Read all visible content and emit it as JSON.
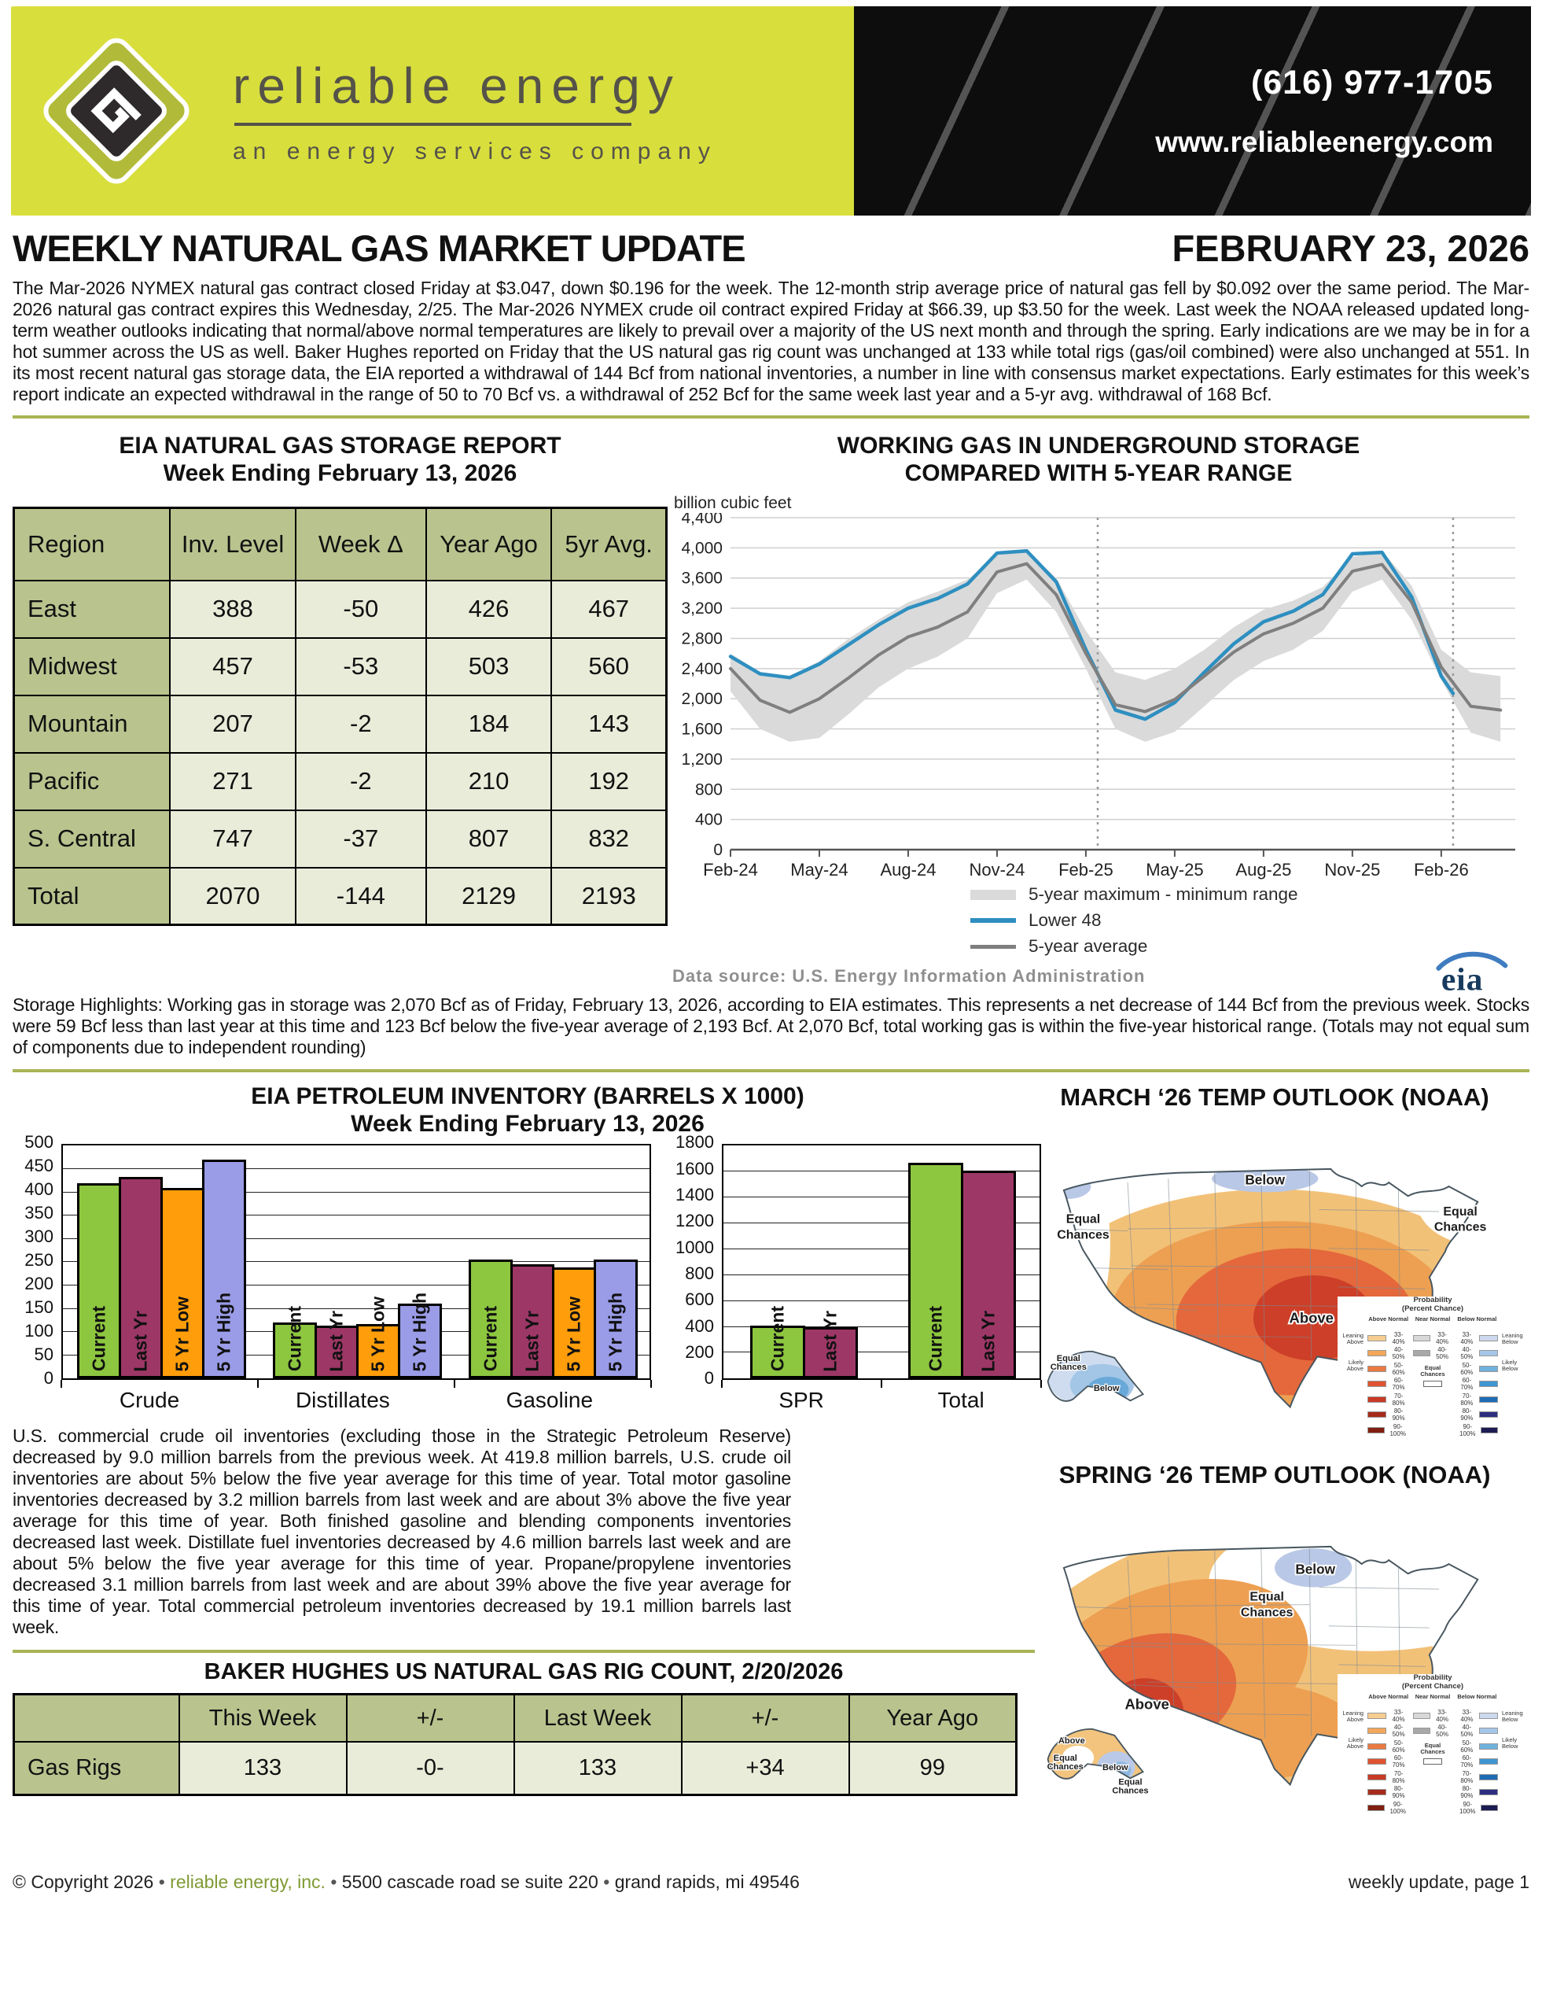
{
  "header": {
    "brand": "reliable energy",
    "tagline": "an energy services company",
    "phone": "(616) 977-1705",
    "website": "www.reliableenergy.com"
  },
  "title": {
    "main": "WEEKLY NATURAL GAS MARKET UPDATE",
    "date": "FEBRUARY 23, 2026"
  },
  "intro_text": "The Mar-2026 NYMEX natural gas contract closed Friday at $3.047, down $0.196 for the week. The 12-month strip average price of natural gas fell by $0.092 over the same period. The Mar-2026 natural gas contract expires this Wednesday, 2/25. The Mar-2026 NYMEX crude oil contract expired Friday at $66.39, up $3.50 for the week. Last week the NOAA released updated long-term weather outlooks indicating that normal/above normal temperatures are likely to prevail over a majority of the US next month and through the spring. Early indications are we may be in for a hot summer across the US as well. Baker Hughes reported on Friday that the US natural gas rig count was unchanged at 133 while total rigs (gas/oil combined) were also unchanged at 551. In its most recent natural gas storage data, the EIA reported a withdrawal of 144 Bcf from national inventories, a number in line with consensus market expectations. Early estimates for this week’s report indicate an expected withdrawal in the range of 50 to 70 Bcf vs. a withdrawal of 252 Bcf for the same week last year and a 5-yr avg. withdrawal of 168 Bcf.",
  "storage_report": {
    "title_line1": "EIA NATURAL GAS STORAGE REPORT",
    "title_line2": "Week Ending February 13, 2026",
    "columns": [
      "Region",
      "Inv. Level",
      "Week Δ",
      "Year Ago",
      "5yr Avg."
    ],
    "rows": [
      [
        "East",
        "388",
        "-50",
        "426",
        "467"
      ],
      [
        "Midwest",
        "457",
        "-53",
        "503",
        "560"
      ],
      [
        "Mountain",
        "207",
        "-2",
        "184",
        "143"
      ],
      [
        "Pacific",
        "271",
        "-2",
        "210",
        "192"
      ],
      [
        "S. Central",
        "747",
        "-37",
        "807",
        "832"
      ],
      [
        "Total",
        "2070",
        "-144",
        "2129",
        "2193"
      ]
    ]
  },
  "storage_highlights": "Storage Highlights: Working gas in storage was 2,070 Bcf as of Friday, February 13, 2026, according to EIA estimates. This represents a net decrease of 144 Bcf from the previous week. Stocks were 59 Bcf less than last year at this time and 123 Bcf below the five-year average of 2,193 Bcf. At 2,070 Bcf, total working gas is within the five-year historical range. (Totals may not equal sum of components due to independent rounding)",
  "petroleum_text": "U.S. commercial crude oil inventories (excluding those in the Strategic Petroleum Reserve) decreased by 9.0 million barrels from the previous week. At 419.8 million barrels, U.S. crude oil inventories are about 5% below the five year average for this time of year. Total motor gasoline inventories decreased by 3.2 million barrels from last week and are about 3% above the five year average for this time of year. Both finished gasoline and blending components inventories decreased last week. Distillate fuel inventories decreased by 4.6 million barrels last week and are about 5% below the five year average for this time of year. Propane/propylene inventories decreased 3.1 million barrels from last week and are about 39% above the five year average for this time of year. Total commercial petroleum inventories decreased by 19.1 million barrels last week.",
  "rig_count": {
    "title": "BAKER HUGHES US NATURAL GAS RIG COUNT, 2/20/2026",
    "columns": [
      "",
      "This Week",
      "+/-",
      "Last Week",
      "+/-",
      "Year Ago"
    ],
    "rows": [
      [
        "Gas Rigs",
        "133",
        "-0-",
        "133",
        "+34",
        "99"
      ]
    ]
  },
  "maps": {
    "march": {
      "title": "MARCH ‘26 TEMP OUTLOOK (NOAA)",
      "labels": {
        "below": "Below",
        "equal_west_1": "Equal",
        "equal_west_2": "Chances",
        "equal_east_1": "Equal",
        "equal_east_2": "Chances",
        "above": "Above",
        "ak_equal_1": "Equal",
        "ak_equal_2": "Chances",
        "ak_below": "Below"
      }
    },
    "spring": {
      "title": "SPRING ‘26 TEMP OUTLOOK (NOAA)",
      "labels": {
        "below": "Below",
        "equal_1": "Equal",
        "equal_2": "Chances",
        "above": "Above",
        "fl_above": "Above",
        "ak_above": "Above",
        "ak_equal_1": "Equal",
        "ak_equal_2": "Chances",
        "ak_below": "Below",
        "ak_equal2_1": "Equal",
        "ak_equal2_2": "Chances"
      }
    },
    "legend": {
      "title1": "Probability",
      "title2": "(Percent Chance)",
      "above": "Above Normal",
      "near": "Near Normal",
      "below": "Below Normal",
      "leaning_above": "Leaning Above",
      "likely_above": "Likely Above",
      "equal": "Equal Chances",
      "leaning_below": "Leaning Below",
      "likely_below": "Likely Below",
      "above_pcts": [
        "33-40%",
        "40-50%",
        "50-60%",
        "60-70%",
        "70-80%",
        "80-90%",
        "90-100%"
      ],
      "near_pcts": [
        "33-40%",
        "40-50%"
      ],
      "below_pcts": [
        "33-40%",
        "40-50%",
        "50-60%",
        "60-70%",
        "70-80%",
        "80-90%",
        "90-100%"
      ]
    }
  },
  "footer": {
    "parts": [
      "© Copyright 2026",
      "reliable energy, inc.",
      "5500 cascade road se  suite 220",
      "grand rapids, mi  49546"
    ],
    "page_note": "weekly update, page 1"
  },
  "chart_data": [
    {
      "id": "storage",
      "type": "line",
      "title_line1": "WORKING GAS IN UNDERGROUND STORAGE",
      "title_line2": "COMPARED WITH 5-YEAR RANGE",
      "ylabel": "billion cubic feet",
      "source": "Data source:  U.S. Energy Information Administration",
      "ylim": [
        0,
        4400
      ],
      "ytick_step": 400,
      "xlim": [
        0,
        26.5
      ],
      "xtick_positions": [
        0,
        3,
        6,
        9,
        12,
        15,
        18,
        21,
        24
      ],
      "xticklabels": [
        "Feb-24",
        "May-24",
        "Aug-24",
        "Nov-24",
        "Feb-25",
        "May-25",
        "Aug-25",
        "Nov-25",
        "Feb-26"
      ],
      "vlines": [
        12.4,
        24.4
      ],
      "band": {
        "name": "5-year maximum - minimum range",
        "color": "#dadada",
        "x": [
          0,
          1,
          2,
          3,
          4,
          5,
          6,
          7,
          8,
          9,
          10,
          11,
          12,
          13,
          14,
          15,
          16,
          17,
          18,
          19,
          20,
          21,
          22,
          23,
          24,
          25,
          26
        ],
        "max": [
          2600,
          2350,
          2300,
          2500,
          2800,
          3050,
          3280,
          3420,
          3580,
          3900,
          3970,
          3600,
          2900,
          2350,
          2250,
          2400,
          2650,
          2950,
          3180,
          3300,
          3480,
          3880,
          3960,
          3500,
          2650,
          2350,
          2300
        ],
        "min": [
          2100,
          1600,
          1430,
          1480,
          1800,
          2150,
          2400,
          2560,
          2800,
          3400,
          3580,
          3150,
          2400,
          1600,
          1430,
          1560,
          1900,
          2250,
          2500,
          2650,
          2900,
          3420,
          3580,
          3050,
          2250,
          1550,
          1430
        ]
      },
      "series": [
        {
          "name": "Lower 48",
          "color": "#2e8fc0",
          "x": [
            0,
            1,
            2,
            3,
            4,
            5,
            6,
            7,
            8,
            9,
            10,
            11,
            12,
            13,
            14,
            15,
            16,
            17,
            18,
            19,
            20,
            21,
            22,
            23,
            24,
            24.4
          ],
          "values": [
            2560,
            2330,
            2280,
            2460,
            2720,
            2980,
            3200,
            3330,
            3520,
            3930,
            3960,
            3550,
            2650,
            1850,
            1730,
            1950,
            2350,
            2730,
            3020,
            3160,
            3380,
            3920,
            3940,
            3350,
            2300,
            2070
          ]
        },
        {
          "name": "5-year average",
          "color": "#7f7f7f",
          "x": [
            0,
            1,
            2,
            3,
            4,
            5,
            6,
            7,
            8,
            9,
            10,
            11,
            12,
            13,
            14,
            15,
            16,
            17,
            18,
            19,
            20,
            21,
            22,
            23,
            24,
            25,
            26
          ],
          "values": [
            2400,
            1980,
            1820,
            2000,
            2280,
            2580,
            2820,
            2950,
            3150,
            3680,
            3790,
            3380,
            2600,
            1920,
            1830,
            1990,
            2300,
            2620,
            2860,
            3000,
            3200,
            3690,
            3780,
            3280,
            2420,
            1900,
            1850
          ]
        }
      ]
    },
    {
      "id": "petroleum_main",
      "type": "bar",
      "title_line1": "EIA PETROLEUM INVENTORY (BARRELS X 1000)",
      "title_line2": "Week Ending February 13, 2026",
      "categories": [
        "Crude",
        "Distillates",
        "Gasoline"
      ],
      "ylim": [
        0,
        500
      ],
      "ytick_step": 50,
      "series": [
        {
          "name": "Current",
          "color": "#8dc63f",
          "values": [
            420,
            120,
            255
          ]
        },
        {
          "name": "Last Yr",
          "color": "#9c3766",
          "values": [
            433,
            113,
            246
          ]
        },
        {
          "name": "5 Yr Low",
          "color": "#ff9d0a",
          "values": [
            410,
            118,
            238
          ]
        },
        {
          "name": "5 Yr High",
          "color": "#9a9ce8",
          "values": [
            470,
            161,
            256
          ]
        }
      ]
    },
    {
      "id": "petroleum_spr",
      "type": "bar",
      "categories": [
        "SPR",
        "Total"
      ],
      "ylim": [
        0,
        1800
      ],
      "ytick_step": 200,
      "series": [
        {
          "name": "Current",
          "color": "#8dc63f",
          "values": [
            410,
            1668
          ]
        },
        {
          "name": "Last Yr",
          "color": "#9c3766",
          "values": [
            395,
            1610
          ]
        }
      ]
    }
  ]
}
